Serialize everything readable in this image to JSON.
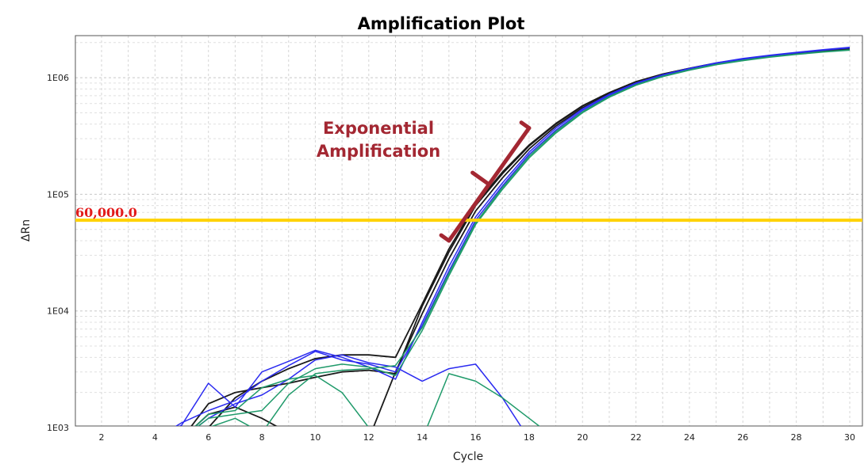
{
  "chart_data": {
    "type": "line",
    "title": "Amplification Plot",
    "xlabel": "Cycle",
    "ylabel": "ΔRn",
    "y_scale": "log",
    "xlim": [
      1,
      30
    ],
    "ylim": [
      1000,
      2000000
    ],
    "x_ticks": [
      2,
      4,
      6,
      8,
      10,
      12,
      14,
      16,
      18,
      20,
      22,
      24,
      26,
      28,
      30
    ],
    "y_ticks": [
      {
        "value": 1000,
        "label": "1E03"
      },
      {
        "value": 10000,
        "label": "1E04"
      },
      {
        "value": 100000,
        "label": "1E05"
      },
      {
        "value": 1000000,
        "label": "1E06"
      }
    ],
    "grid": true,
    "threshold": {
      "value": 60000,
      "label": "60,000.0",
      "color": "#ffd200"
    },
    "annotation": {
      "lines": [
        "Exponential",
        "Amplification"
      ],
      "color": "#a32732",
      "bracket_from": [
        15,
        40000
      ],
      "bracket_to": [
        18,
        370000
      ]
    },
    "series_colors": {
      "black": "#1a1a1a",
      "blue": "#2a2af0",
      "green": "#1f9a6a"
    },
    "series": [
      {
        "color": "black",
        "x": [
          1,
          2,
          3,
          4,
          5,
          6,
          7,
          8,
          9,
          10,
          11,
          12,
          13,
          14,
          15,
          16,
          17,
          18,
          19,
          20,
          21,
          22,
          23,
          24,
          25,
          26,
          27,
          28,
          29,
          30
        ],
        "y": [
          800,
          800,
          800,
          800,
          800,
          1600,
          2000,
          2200,
          2400,
          2700,
          3000,
          3100,
          2900,
          11000,
          32000,
          80000,
          150000,
          260000,
          400000,
          570000,
          740000,
          920000,
          1070000,
          1200000,
          1330000,
          1440000,
          1540000,
          1620000,
          1700000,
          1760000
        ]
      },
      {
        "color": "black",
        "x": [
          1,
          2,
          3,
          4,
          5,
          6,
          7,
          8,
          9,
          10,
          11,
          12,
          13,
          14,
          15,
          16,
          17,
          18,
          19,
          20,
          21,
          22,
          23,
          24,
          25,
          26,
          27,
          28,
          29,
          30
        ],
        "y": [
          800,
          800,
          800,
          800,
          800,
          1000,
          1800,
          2500,
          3200,
          3900,
          4200,
          4200,
          4000,
          11500,
          34000,
          82000,
          155000,
          265000,
          405000,
          575000,
          745000,
          925000,
          1075000,
          1205000,
          1335000,
          1445000,
          1545000,
          1625000,
          1705000,
          1765000
        ]
      },
      {
        "color": "black",
        "x": [
          1,
          2,
          3,
          4,
          5,
          6,
          7,
          8,
          9,
          10,
          11,
          12,
          13,
          14,
          15,
          16,
          17,
          18,
          19,
          20,
          21,
          22,
          23,
          24,
          25,
          26,
          27,
          28,
          29,
          30
        ],
        "y": [
          800,
          800,
          800,
          800,
          800,
          1300,
          1500,
          1200,
          900,
          800,
          800,
          800,
          3000,
          9500,
          28000,
          72000,
          138000,
          245000,
          385000,
          550000,
          725000,
          905000,
          1060000,
          1190000,
          1320000,
          1430000,
          1530000,
          1610000,
          1690000,
          1750000
        ]
      },
      {
        "color": "blue",
        "x": [
          1,
          2,
          3,
          4,
          5,
          6,
          7,
          8,
          9,
          10,
          11,
          12,
          13,
          14,
          15,
          16,
          17,
          18,
          19,
          20,
          21,
          22,
          23,
          24,
          25,
          26,
          27,
          28,
          29,
          30
        ],
        "y": [
          800,
          800,
          800,
          800,
          1050,
          2400,
          1500,
          3000,
          3700,
          4600,
          4000,
          3300,
          2600,
          8000,
          24000,
          64000,
          125000,
          230000,
          370000,
          540000,
          720000,
          900000,
          1060000,
          1200000,
          1340000,
          1460000,
          1560000,
          1650000,
          1740000,
          1820000
        ]
      },
      {
        "color": "blue",
        "x": [
          1,
          2,
          3,
          4,
          5,
          6,
          7,
          8,
          9,
          10,
          11,
          12,
          13,
          14,
          15,
          16,
          17,
          18,
          19,
          20,
          21,
          22,
          23,
          24,
          25,
          26,
          27,
          28,
          29,
          30
        ],
        "y": [
          800,
          800,
          800,
          800,
          1100,
          1400,
          1700,
          2500,
          3400,
          4500,
          3800,
          3500,
          3000,
          7500,
          22000,
          60000,
          118000,
          220000,
          355000,
          525000,
          705000,
          885000,
          1045000,
          1185000,
          1320000,
          1440000,
          1540000,
          1630000,
          1720000,
          1800000
        ]
      },
      {
        "color": "blue",
        "x": [
          1,
          2,
          3,
          4,
          5,
          6,
          7,
          8,
          9,
          10,
          11,
          12,
          13,
          14,
          15,
          16,
          17,
          18,
          19,
          20,
          21,
          22,
          23,
          24,
          25,
          26,
          27,
          28,
          29,
          30
        ],
        "y": [
          800,
          800,
          800,
          800,
          800,
          1200,
          1600,
          1900,
          2600,
          3800,
          4200,
          3600,
          3300,
          2500,
          3200,
          3500,
          1800,
          800,
          800,
          800,
          800,
          800,
          800,
          800,
          800,
          800,
          800,
          800,
          800,
          800
        ]
      },
      {
        "color": "green",
        "x": [
          1,
          2,
          3,
          4,
          5,
          6,
          7,
          8,
          9,
          10,
          11,
          12,
          13,
          14,
          15,
          16,
          17,
          18,
          19,
          20,
          21,
          22,
          23,
          24,
          25,
          26,
          27,
          28,
          29,
          30
        ],
        "y": [
          800,
          800,
          800,
          800,
          800,
          1200,
          1300,
          1400,
          2400,
          3200,
          3500,
          3300,
          2800,
          6800,
          20000,
          55000,
          110000,
          205000,
          335000,
          500000,
          680000,
          860000,
          1020000,
          1160000,
          1290000,
          1400000,
          1500000,
          1580000,
          1660000,
          1720000
        ]
      },
      {
        "color": "green",
        "x": [
          1,
          2,
          3,
          4,
          5,
          6,
          7,
          8,
          9,
          10,
          11,
          12,
          13,
          14,
          15,
          16,
          17,
          18,
          19,
          20,
          21,
          22,
          23,
          24,
          25,
          26,
          27,
          28,
          29,
          30
        ],
        "y": [
          800,
          800,
          800,
          800,
          800,
          1000,
          1200,
          900,
          1900,
          2900,
          3100,
          3200,
          3400,
          7200,
          21000,
          57000,
          114000,
          212000,
          345000,
          510000,
          690000,
          870000,
          1030000,
          1170000,
          1300000,
          1410000,
          1510000,
          1590000,
          1670000,
          1730000
        ]
      },
      {
        "color": "green",
        "x": [
          1,
          2,
          3,
          4,
          5,
          6,
          7,
          8,
          9,
          10,
          11,
          12,
          13,
          14,
          15,
          16,
          17,
          18,
          19,
          20,
          21,
          22,
          23,
          24,
          25,
          26,
          27,
          28,
          29,
          30
        ],
        "y": [
          800,
          800,
          800,
          800,
          800,
          1300,
          1400,
          2200,
          2600,
          2800,
          2000,
          1000,
          800,
          800,
          2900,
          2500,
          1800,
          1200,
          800,
          800,
          800,
          800,
          800,
          800,
          800,
          800,
          800,
          800,
          800,
          800
        ]
      }
    ]
  }
}
